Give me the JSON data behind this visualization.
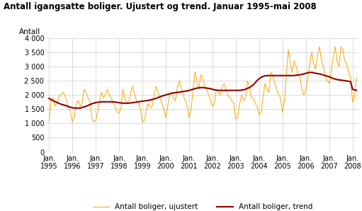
{
  "title": "Antall igangsatte boliger. Ujustert og trend. Januar 1995-mai 2008",
  "ylabel": "Antall",
  "ylim": [
    0,
    4000
  ],
  "yticks": [
    0,
    500,
    1000,
    1500,
    2000,
    2500,
    3000,
    3500,
    4000
  ],
  "ytick_labels": [
    "0",
    "500",
    "1 000",
    "1 500",
    "2 000",
    "2 500",
    "3 000",
    "3 500",
    "4 000"
  ],
  "xlabel_ticks": [
    "Jan.\n1995",
    "Jan.\n1996",
    "Jan.\n1997",
    "Jan.\n1998",
    "Jan.\n1999",
    "Jan.\n2000",
    "Jan.\n2001",
    "Jan.\n2002",
    "Jan.\n2003",
    "Jan.\n2004",
    "Jan.\n2005",
    "Jan.\n2006",
    "Jan.\n2007",
    "Jan.\n2008"
  ],
  "color_ujustert": "#FFA500",
  "color_trend": "#8B0000",
  "legend_ujustert": "Antall boliger, ujustert",
  "legend_trend": "Antall boliger, trend",
  "background_color": "#ffffff",
  "ujustert": [
    1050,
    1800,
    1900,
    1600,
    1700,
    1900,
    2000,
    2100,
    2000,
    1800,
    1600,
    1400,
    1050,
    1200,
    1700,
    1800,
    1600,
    1700,
    2200,
    2100,
    1900,
    1800,
    1200,
    1050,
    1100,
    1400,
    1800,
    2100,
    1900,
    2000,
    2200,
    2000,
    1900,
    1700,
    1600,
    1400,
    1350,
    1550,
    2200,
    1900,
    1700,
    1800,
    2100,
    2300,
    2000,
    1800,
    1700,
    1500,
    1050,
    1100,
    1450,
    1700,
    1550,
    1600,
    2000,
    2300,
    2100,
    1900,
    1700,
    1500,
    1200,
    1600,
    2000,
    2100,
    1900,
    1800,
    2300,
    2500,
    2200,
    2000,
    1800,
    1600,
    1200,
    1500,
    2100,
    2800,
    2500,
    2200,
    2700,
    2600,
    2300,
    2200,
    2000,
    1800,
    1600,
    1700,
    2200,
    2100,
    2000,
    2300,
    2400,
    2200,
    2000,
    1900,
    1800,
    1700,
    1150,
    1200,
    1700,
    2000,
    1800,
    1900,
    2500,
    2300,
    1900,
    1900,
    1700,
    1600,
    1300,
    1400,
    1900,
    2400,
    2200,
    2100,
    2800,
    2700,
    2400,
    2200,
    2000,
    1900,
    1380,
    1800,
    2700,
    3600,
    3100,
    2800,
    3200,
    3000,
    2700,
    2600,
    2200,
    2000,
    2200,
    2600,
    3100,
    3500,
    3100,
    2900,
    3400,
    3700,
    3200,
    3000,
    2700,
    2500,
    2400,
    2800,
    3300,
    3700,
    3200,
    3000,
    3700,
    3600,
    3200,
    3100,
    2800,
    2600,
    1750,
    1900,
    2600
  ],
  "trend": [
    1880,
    1840,
    1800,
    1770,
    1740,
    1710,
    1680,
    1660,
    1640,
    1620,
    1590,
    1570,
    1550,
    1540,
    1540,
    1540,
    1540,
    1560,
    1580,
    1600,
    1630,
    1660,
    1690,
    1710,
    1730,
    1740,
    1750,
    1760,
    1760,
    1760,
    1760,
    1760,
    1760,
    1760,
    1750,
    1740,
    1730,
    1720,
    1710,
    1710,
    1710,
    1710,
    1720,
    1730,
    1740,
    1750,
    1760,
    1770,
    1780,
    1790,
    1800,
    1810,
    1820,
    1840,
    1860,
    1880,
    1910,
    1930,
    1960,
    1980,
    2000,
    2020,
    2040,
    2060,
    2070,
    2080,
    2090,
    2100,
    2110,
    2120,
    2130,
    2140,
    2160,
    2180,
    2200,
    2220,
    2240,
    2250,
    2260,
    2260,
    2250,
    2240,
    2230,
    2220,
    2200,
    2180,
    2170,
    2160,
    2160,
    2160,
    2160,
    2160,
    2160,
    2160,
    2160,
    2160,
    2160,
    2160,
    2160,
    2170,
    2180,
    2200,
    2230,
    2260,
    2300,
    2360,
    2430,
    2510,
    2570,
    2620,
    2650,
    2670,
    2680,
    2680,
    2680,
    2680,
    2680,
    2680,
    2680,
    2680,
    2680,
    2680,
    2680,
    2680,
    2680,
    2680,
    2680,
    2690,
    2700,
    2710,
    2720,
    2740,
    2760,
    2780,
    2790,
    2790,
    2780,
    2760,
    2750,
    2740,
    2720,
    2700,
    2680,
    2660,
    2640,
    2610,
    2580,
    2560,
    2540,
    2530,
    2520,
    2510,
    2500,
    2490,
    2480,
    2470,
    2200,
    2180,
    2160
  ]
}
